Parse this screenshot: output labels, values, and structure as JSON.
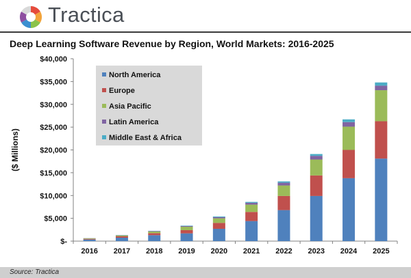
{
  "brand": {
    "name": "Tractica",
    "colors": [
      "#e54b3c",
      "#f2a33a",
      "#8bc34a",
      "#3b8fd0",
      "#8e4ea0"
    ]
  },
  "footer": {
    "source": "Source: Tractica"
  },
  "chart_data": {
    "type": "bar",
    "stacked": true,
    "title": "Deep Learning Software Revenue by Region, World Markets: 2016-2025",
    "xlabel": "",
    "ylabel": "($ Millions)",
    "ylim": [
      0,
      40000
    ],
    "yticks": [
      0,
      5000,
      10000,
      15000,
      20000,
      25000,
      30000,
      35000,
      40000
    ],
    "ytick_labels": [
      "$-",
      "$5,000",
      "$10,000",
      "$15,000",
      "$20,000",
      "$25,000",
      "$30,000",
      "$35,000",
      "$40,000"
    ],
    "grid": false,
    "legend_position": "top-left",
    "categories": [
      "2016",
      "2017",
      "2018",
      "2019",
      "2020",
      "2021",
      "2022",
      "2023",
      "2024",
      "2025"
    ],
    "series": [
      {
        "name": "North America",
        "color": "#4f81bd",
        "values": [
          350,
          750,
          1300,
          1700,
          2700,
          4400,
          6800,
          9900,
          13800,
          18100
        ]
      },
      {
        "name": "Europe",
        "color": "#c0504d",
        "values": [
          150,
          300,
          450,
          700,
          1300,
          2000,
          3100,
          4500,
          6200,
          8200
        ]
      },
      {
        "name": "Asia Pacific",
        "color": "#9bbb59",
        "values": [
          100,
          200,
          350,
          750,
          1000,
          1600,
          2300,
          3500,
          5100,
          6800
        ]
      },
      {
        "name": "Latin America",
        "color": "#8064a2",
        "values": [
          30,
          60,
          100,
          150,
          250,
          400,
          600,
          800,
          1000,
          1000
        ]
      },
      {
        "name": "Middle East & Africa",
        "color": "#4bacc6",
        "values": [
          20,
          40,
          60,
          90,
          150,
          200,
          300,
          400,
          600,
          700
        ]
      }
    ]
  }
}
